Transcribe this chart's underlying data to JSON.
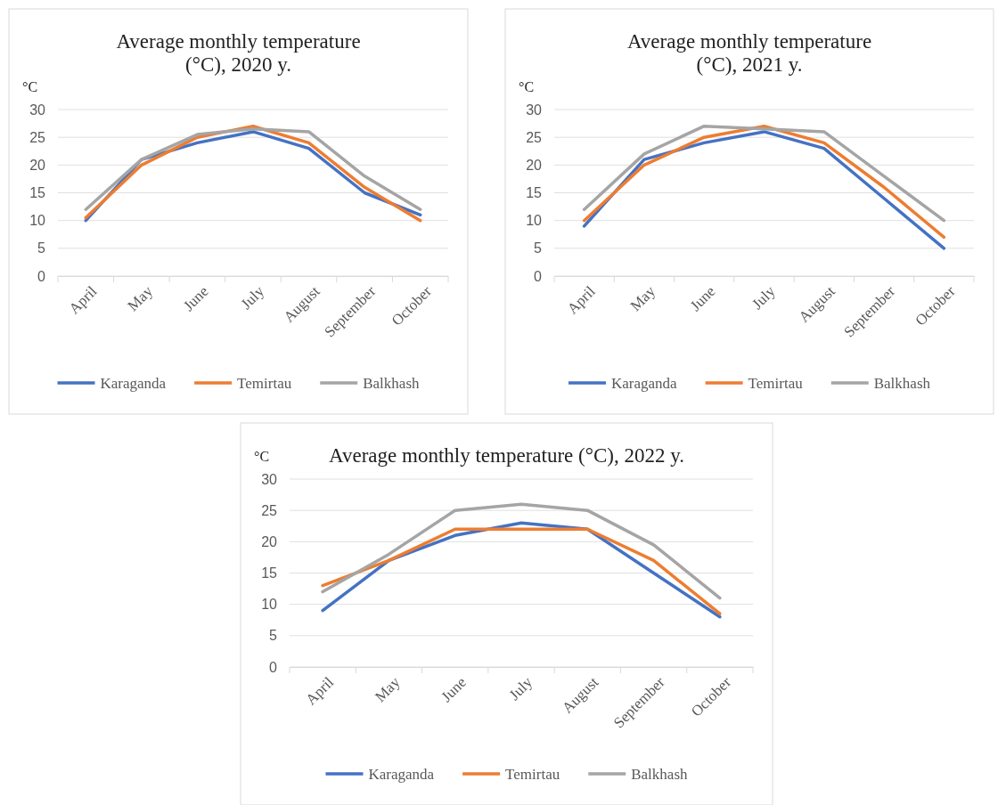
{
  "chart_data": [
    {
      "type": "line",
      "title": "Average monthly temperature (°C), 2020 y.",
      "ylabel": "°C",
      "categories": [
        "April",
        "May",
        "June",
        "July",
        "August",
        "September",
        "October"
      ],
      "series": [
        {
          "name": "Karaganda",
          "color": "#4472c4",
          "values": [
            10,
            21,
            24,
            26,
            23,
            15,
            11
          ]
        },
        {
          "name": "Temirtau",
          "color": "#ed7d31",
          "values": [
            10.5,
            20,
            25,
            27,
            24,
            16,
            10
          ]
        },
        {
          "name": "Balkhash",
          "color": "#a5a5a5",
          "values": [
            12,
            21,
            25.5,
            26.5,
            26,
            18,
            12
          ]
        }
      ],
      "ylim": [
        0,
        30
      ],
      "yticks": [
        0,
        5,
        10,
        15,
        20,
        25,
        30
      ],
      "grid": "y",
      "legend": "bottom",
      "marker": "none",
      "line_style": "solid"
    },
    {
      "type": "line",
      "title": "Average monthly temperature (°C), 2021 y.",
      "ylabel": "°C",
      "categories": [
        "April",
        "May",
        "June",
        "July",
        "August",
        "September",
        "October"
      ],
      "series": [
        {
          "name": "Karaganda",
          "color": "#4472c4",
          "values": [
            9,
            21,
            24,
            26,
            23,
            14,
            5
          ]
        },
        {
          "name": "Temirtau",
          "color": "#ed7d31",
          "values": [
            10,
            20,
            25,
            27,
            24,
            16,
            7
          ]
        },
        {
          "name": "Balkhash",
          "color": "#a5a5a5",
          "values": [
            12,
            22,
            27,
            26.5,
            26,
            18,
            10
          ]
        }
      ],
      "ylim": [
        0,
        30
      ],
      "yticks": [
        0,
        5,
        10,
        15,
        20,
        25,
        30
      ],
      "grid": "y",
      "legend": "bottom",
      "marker": "none",
      "line_style": "solid"
    },
    {
      "type": "line",
      "title": "Average monthly temperature (°C), 2022 y.",
      "ylabel": "°C",
      "categories": [
        "April",
        "May",
        "June",
        "July",
        "August",
        "September",
        "October"
      ],
      "series": [
        {
          "name": "Karaganda",
          "color": "#4472c4",
          "values": [
            9,
            17,
            21,
            23,
            22,
            15,
            8
          ]
        },
        {
          "name": "Temirtau",
          "color": "#ed7d31",
          "values": [
            13,
            17,
            22,
            22,
            22,
            17,
            8.5
          ]
        },
        {
          "name": "Balkhash",
          "color": "#a5a5a5",
          "values": [
            12,
            18,
            25,
            26,
            25,
            19.5,
            11
          ]
        }
      ],
      "ylim": [
        0,
        30
      ],
      "yticks": [
        0,
        5,
        10,
        15,
        20,
        25,
        30
      ],
      "grid": "y",
      "legend": "bottom",
      "marker": "none",
      "line_style": "solid"
    }
  ]
}
